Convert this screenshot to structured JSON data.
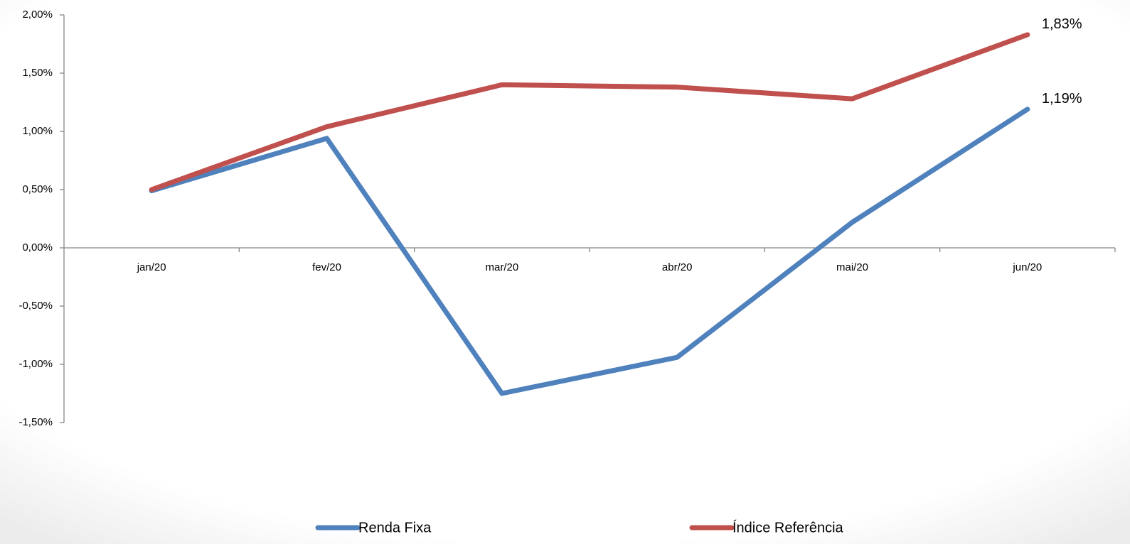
{
  "chart_data": {
    "type": "line",
    "categories": [
      "jan/20",
      "fev/20",
      "mar/20",
      "abr/20",
      "mai/20",
      "jun/20"
    ],
    "series": [
      {
        "name": "Renda Fixa",
        "color": "#4f81bd",
        "values": [
          0.49,
          0.94,
          -1.25,
          -0.94,
          0.22,
          1.19
        ],
        "value_labels": [
          null,
          null,
          null,
          null,
          null,
          "1,19%"
        ]
      },
      {
        "name": "Índice Referência",
        "color": "#c0504d",
        "values": [
          0.5,
          1.04,
          1.4,
          1.38,
          1.28,
          1.83
        ],
        "value_labels": [
          null,
          null,
          null,
          null,
          null,
          "1,83%"
        ]
      }
    ],
    "ylim": [
      -1.5,
      2.0
    ],
    "yticks": [
      {
        "value": -1.5,
        "label": "-1,50%"
      },
      {
        "value": -1.0,
        "label": "-1,00%"
      },
      {
        "value": -0.5,
        "label": "-0,50%"
      },
      {
        "value": 0,
        "label": "0,00%"
      },
      {
        "value": 0.5,
        "label": "0,50%"
      },
      {
        "value": 1.0,
        "label": "1,00%"
      },
      {
        "value": 1.5,
        "label": "1,50%"
      },
      {
        "value": 2.0,
        "label": "2,00%"
      }
    ],
    "grid": false,
    "legend": "bottom"
  }
}
